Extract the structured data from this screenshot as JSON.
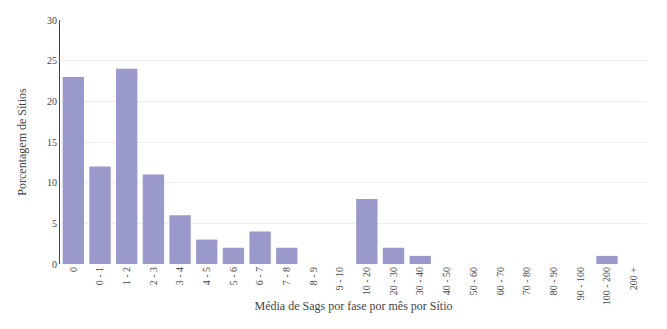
{
  "chart_data": {
    "type": "bar",
    "categories": [
      "0",
      "0 - 1",
      "1 - 2",
      "2 - 3",
      "3 - 4",
      "4 - 5",
      "5 - 6",
      "6 - 7",
      "7 - 8",
      "8 - 9",
      "9 - 10",
      "10 - 20",
      "20 - 30",
      "30 - 40",
      "40 - 50",
      "50 - 60",
      "60 - 70",
      "70 - 80",
      "80 - 90",
      "90 - 100",
      "100 - 200",
      "200 +"
    ],
    "values": [
      23,
      12,
      24,
      11,
      6,
      3,
      2,
      4,
      2,
      0,
      0,
      8,
      2,
      1,
      0,
      0,
      0,
      0,
      0,
      0,
      1,
      0
    ],
    "color": "#9999cc",
    "xlabel": "Média de Sags por fase por mês por Sítio",
    "ylabel": "Porcentagem de Sítios",
    "ylim": [
      0,
      30
    ],
    "yticks": [
      0,
      5,
      10,
      15,
      20,
      25,
      30
    ],
    "grid": true
  }
}
